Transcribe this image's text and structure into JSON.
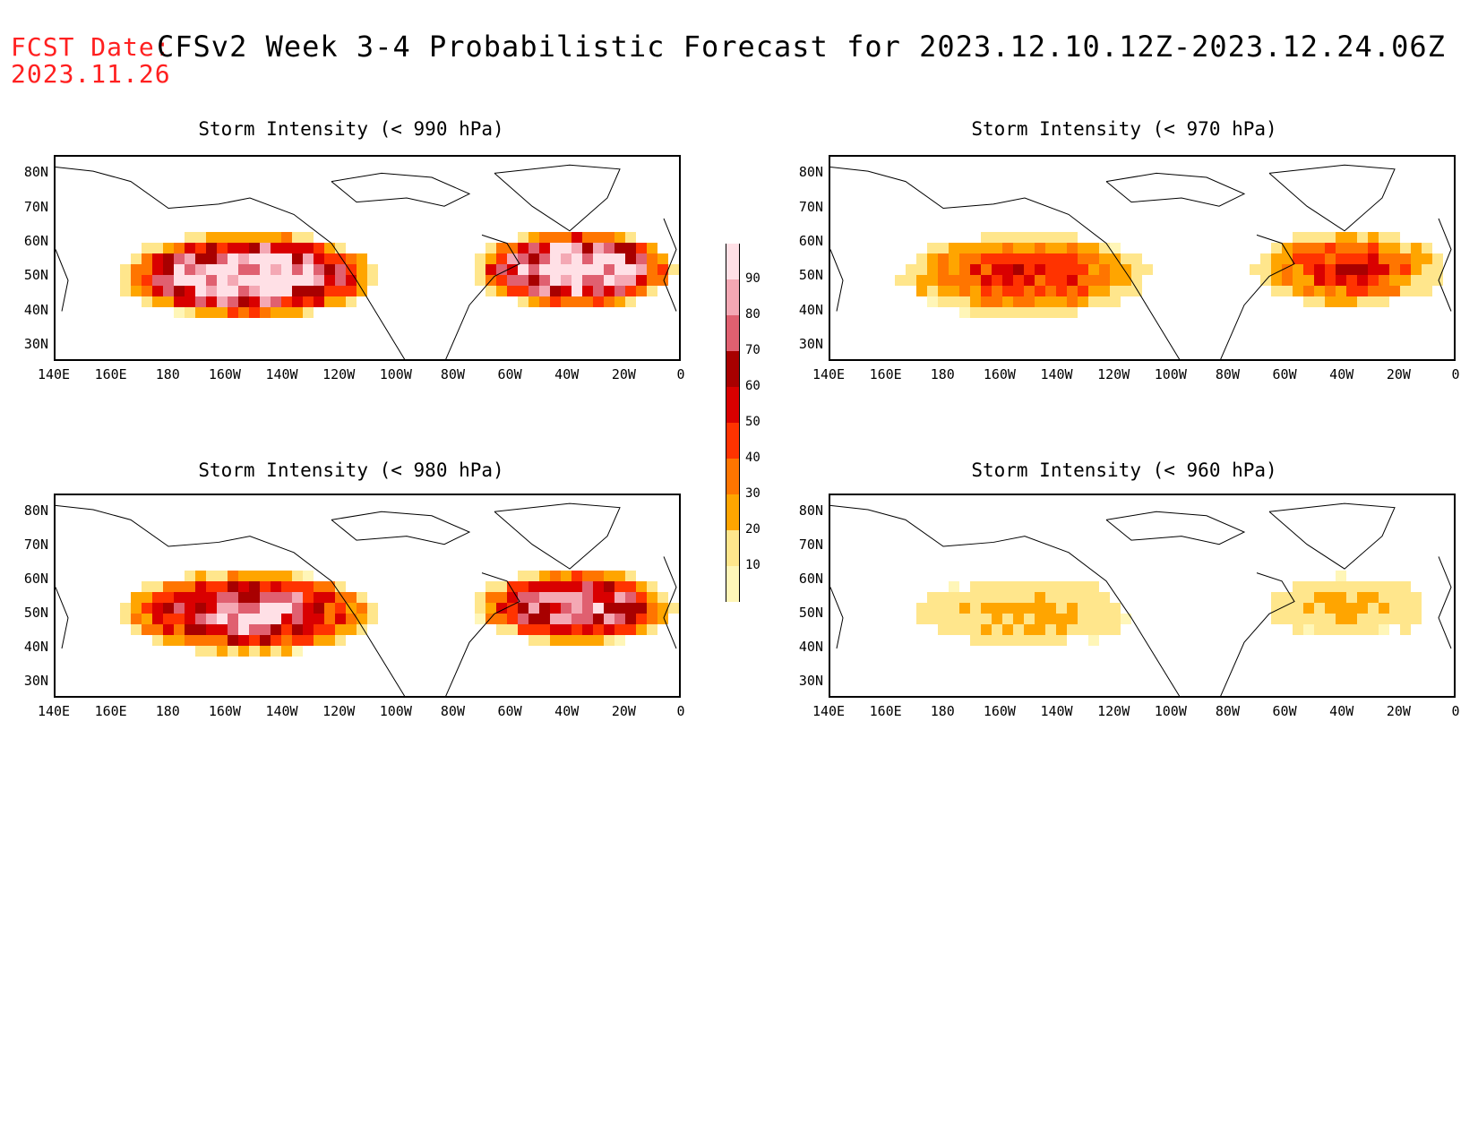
{
  "header": {
    "fcst_label": "FCST Date:",
    "fcst_date": "2023.11.26",
    "title": "CFSv2 Week 3-4 Probabilistic Forecast for 2023.12.10.12Z-2023.12.24.06Z"
  },
  "panels": [
    {
      "title": "Storm Intensity (< 990 hPa)",
      "intensity": 1.0
    },
    {
      "title": "Storm Intensity (< 970 hPa)",
      "intensity": 0.45
    },
    {
      "title": "Storm Intensity (< 980 hPa)",
      "intensity": 0.75
    },
    {
      "title": "Storm Intensity (< 960 hPa)",
      "intensity": 0.2
    }
  ],
  "lat_ticks": [
    "80N",
    "70N",
    "60N",
    "50N",
    "40N",
    "30N"
  ],
  "lon_ticks": [
    "140E",
    "160E",
    "180",
    "160W",
    "140W",
    "120W",
    "100W",
    "80W",
    "60W",
    "40W",
    "20W",
    "0"
  ],
  "colorbar": {
    "levels": [
      "10",
      "20",
      "30",
      "40",
      "50",
      "60",
      "70",
      "80",
      "90"
    ],
    "colors": [
      "#fff6b8",
      "#ffe68c",
      "#ffa500",
      "#ff7500",
      "#ff3300",
      "#d90000",
      "#a80000",
      "#e06070",
      "#f4a8b4",
      "#ffe0e6"
    ]
  }
}
